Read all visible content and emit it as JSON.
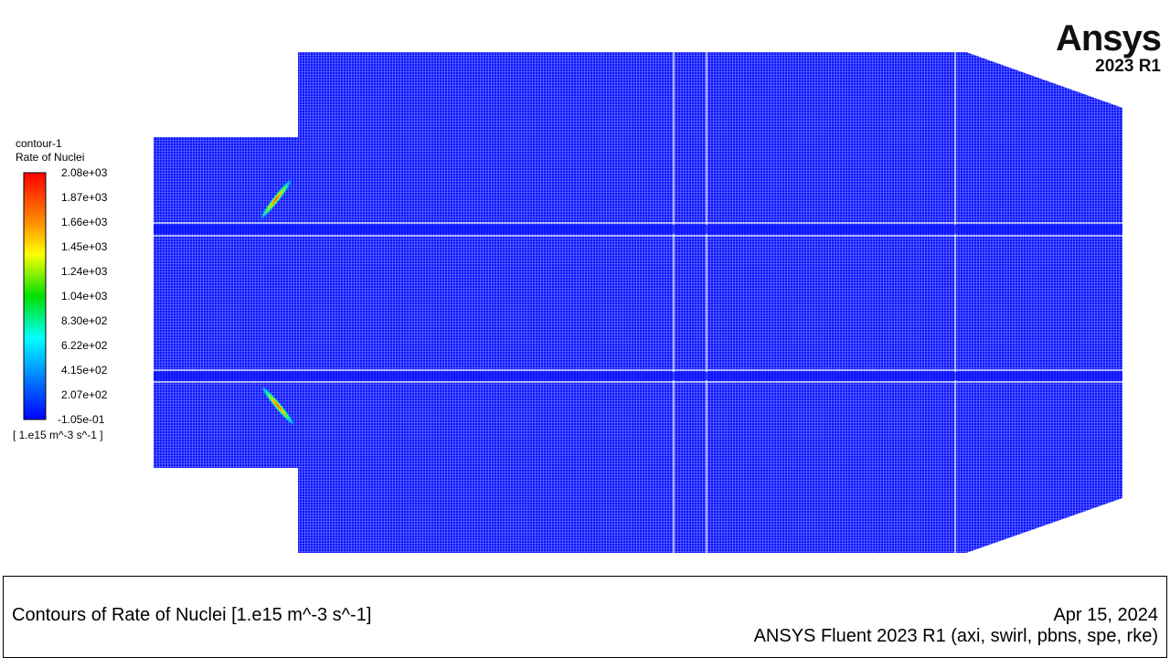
{
  "legend": {
    "name": "contour-1",
    "variable": "Rate of Nuclei",
    "units": "[ 1.e15 m^-3 s^-1 ]",
    "ticks": [
      "2.08e+03",
      "1.87e+03",
      "1.66e+03",
      "1.45e+03",
      "1.24e+03",
      "1.04e+03",
      "8.30e+02",
      "6.22e+02",
      "4.15e+02",
      "2.07e+02",
      "-1.05e-01"
    ],
    "colormap": [
      "#ff0000",
      "#ff8000",
      "#ffff00",
      "#00ff00",
      "#00ffff",
      "#0080ff",
      "#0000ff"
    ]
  },
  "logo": {
    "brand": "Ansys",
    "version": "2023 R1"
  },
  "footer": {
    "title": "Contours of Rate of Nuclei [1.e15 m^-3 s^-1]",
    "date": "Apr 15, 2024",
    "solver": "ANSYS Fluent 2023 R1 (axi, swirl, pbns, spe, rke)"
  },
  "colors": {
    "field": "#0a14ff",
    "mesh": "#ffffff"
  }
}
